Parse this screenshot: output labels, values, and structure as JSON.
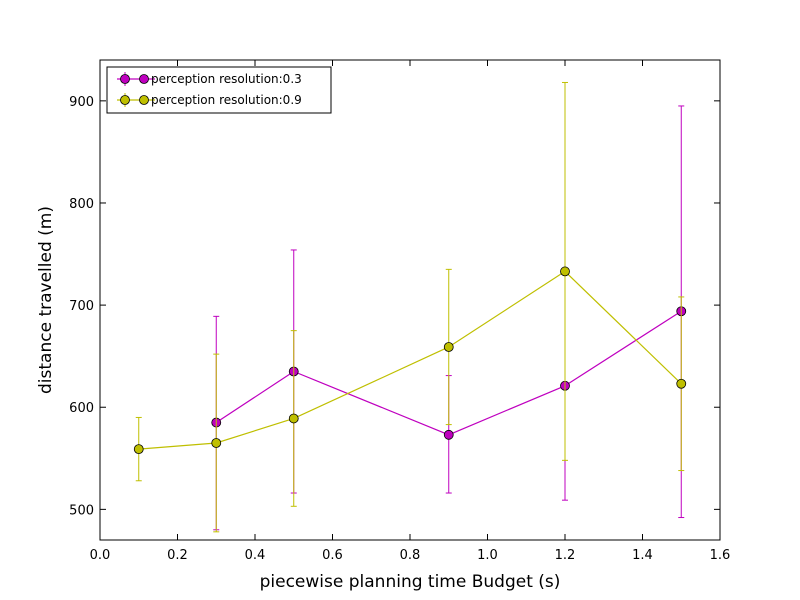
{
  "chart_data": {
    "type": "line",
    "title": "",
    "xlabel": "piecewise planning time Budget (s)",
    "ylabel": "distance travelled (m)",
    "xlim": [
      0.0,
      1.6
    ],
    "ylim": [
      470,
      940
    ],
    "xticks": [
      0.0,
      0.2,
      0.4,
      0.6,
      0.8,
      1.0,
      1.2,
      1.4,
      1.6
    ],
    "xtick_labels": [
      "0.0",
      "0.2",
      "0.4",
      "0.6",
      "0.8",
      "1.0",
      "1.2",
      "1.4",
      "1.6"
    ],
    "yticks": [
      500,
      600,
      700,
      800,
      900
    ],
    "ytick_labels": [
      "500",
      "600",
      "700",
      "800",
      "900"
    ],
    "grid": false,
    "legend_position": "top-left",
    "series": [
      {
        "name": "perception resolution:0.3",
        "color": "#bf00bf",
        "marker_fill": "#bf00bf",
        "x": [
          0.3,
          0.5,
          0.9,
          1.2,
          1.5
        ],
        "y": [
          585,
          635,
          573,
          621,
          694
        ],
        "err_low": [
          480,
          516,
          516,
          509,
          492
        ],
        "err_high": [
          689,
          754,
          631,
          735,
          895
        ]
      },
      {
        "name": "perception resolution:0.9",
        "color": "#bfbf00",
        "marker_fill": "#bfbf00",
        "x": [
          0.1,
          0.3,
          0.5,
          0.9,
          1.2,
          1.5
        ],
        "y": [
          559,
          565,
          589,
          659,
          733,
          623
        ],
        "err_low": [
          528,
          478,
          503,
          583,
          548,
          538
        ],
        "err_high": [
          590,
          652,
          675,
          735,
          918,
          708
        ]
      }
    ]
  }
}
